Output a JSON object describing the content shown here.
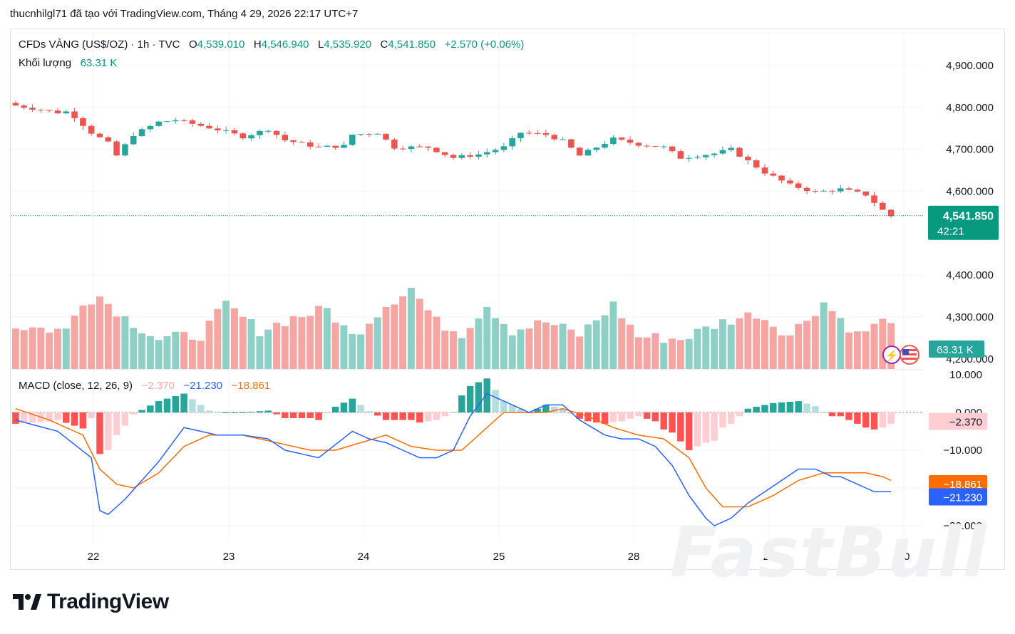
{
  "header": {
    "title": "thucnhilgl71 đã tạo với TradingView.com, Tháng 4 29, 2026 22:17 UTC+7"
  },
  "legend": {
    "symbol": "CFDs VÀNG (US$/OZ) · 1h · TVC",
    "open_label": "O",
    "open": "4,539.010",
    "high_label": "H",
    "high": "4,546.940",
    "low_label": "L",
    "low": "4,535.920",
    "close_label": "C",
    "close": "4,541.850",
    "change": "+2.570 (+0.06%)",
    "volume_label": "Khối lượng",
    "volume": "63.31 K"
  },
  "macd": {
    "label": "MACD (close, 12, 26, 9)",
    "hist": "−2.370",
    "macd": "−21.230",
    "signal": "−18.861"
  },
  "colors": {
    "up": "#26a69a",
    "down": "#ef5350",
    "vol_up": "#8ed0c5",
    "vol_down": "#f5a6a3",
    "macd_line": "#2962ff",
    "signal_line": "#ff6d00",
    "price_tag": "#089981"
  },
  "price_axis": {
    "ticks": [
      "4,900.000",
      "4,800.000",
      "4,700.000",
      "4,600.000",
      "4,400.000",
      "4,300.000",
      "4,200.000"
    ],
    "last_price": "4,541.850",
    "countdown": "42:21",
    "volume_tag": "63.31 K"
  },
  "macd_axis": {
    "ticks": [
      "10.000",
      "0.000",
      "−10.000",
      "−30.000"
    ],
    "hist_tag": "−2.370",
    "signal_tag": "−18.861",
    "macd_tag": "−21.230"
  },
  "time_axis": {
    "ticks": [
      "22",
      "23",
      "24",
      "25",
      "28",
      "29",
      "30"
    ]
  },
  "brand": {
    "name": "TradingView",
    "watermark": "FastBull"
  },
  "chart_data": {
    "type": "candlestick",
    "series_count": 105,
    "price_range": [
      4150,
      4930
    ],
    "macd_range": [
      -33,
      11
    ],
    "close_anchors": [
      [
        0,
        4808
      ],
      [
        6,
        4788
      ],
      [
        7,
        4790
      ],
      [
        8,
        4778
      ],
      [
        10,
        4740
      ],
      [
        12,
        4715
      ],
      [
        13,
        4685
      ],
      [
        15,
        4735
      ],
      [
        18,
        4765
      ],
      [
        20,
        4770
      ],
      [
        24,
        4752
      ],
      [
        26,
        4742
      ],
      [
        28,
        4730
      ],
      [
        31,
        4748
      ],
      [
        33,
        4722
      ],
      [
        37,
        4705
      ],
      [
        40,
        4708
      ],
      [
        41,
        4735
      ],
      [
        44,
        4740
      ],
      [
        46,
        4705
      ],
      [
        50,
        4705
      ],
      [
        53,
        4680
      ],
      [
        56,
        4688
      ],
      [
        59,
        4705
      ],
      [
        61,
        4740
      ],
      [
        64,
        4735
      ],
      [
        66,
        4720
      ],
      [
        68,
        4685
      ],
      [
        70,
        4705
      ],
      [
        72,
        4725
      ],
      [
        75,
        4712
      ],
      [
        78,
        4705
      ],
      [
        80,
        4680
      ],
      [
        84,
        4690
      ],
      [
        86,
        4700
      ],
      [
        88,
        4672
      ],
      [
        90,
        4645
      ],
      [
        93,
        4615
      ],
      [
        96,
        4598
      ],
      [
        99,
        4605
      ],
      [
        102,
        4592
      ],
      [
        104,
        4555
      ],
      [
        105,
        4541
      ]
    ],
    "volume_anchors": [
      [
        0,
        50
      ],
      [
        6,
        45
      ],
      [
        8,
        80
      ],
      [
        10,
        85
      ],
      [
        13,
        60
      ],
      [
        17,
        35
      ],
      [
        22,
        40
      ],
      [
        25,
        75
      ],
      [
        29,
        45
      ],
      [
        33,
        60
      ],
      [
        37,
        70
      ],
      [
        40,
        38
      ],
      [
        44,
        75
      ],
      [
        47,
        95
      ],
      [
        50,
        55
      ],
      [
        53,
        42
      ],
      [
        56,
        75
      ],
      [
        59,
        45
      ],
      [
        63,
        55
      ],
      [
        67,
        40
      ],
      [
        71,
        75
      ],
      [
        74,
        38
      ],
      [
        79,
        35
      ],
      [
        84,
        55
      ],
      [
        88,
        65
      ],
      [
        92,
        40
      ],
      [
        96,
        78
      ],
      [
        100,
        40
      ],
      [
        103,
        55
      ],
      [
        105,
        64
      ]
    ],
    "macd_anchors": [
      [
        0,
        -2
      ],
      [
        5,
        -5
      ],
      [
        9,
        -12
      ],
      [
        10,
        -26
      ],
      [
        11,
        -27
      ],
      [
        13,
        -23
      ],
      [
        17,
        -13
      ],
      [
        20,
        -4
      ],
      [
        22,
        -5
      ],
      [
        24,
        -6
      ],
      [
        27,
        -6
      ],
      [
        30,
        -7
      ],
      [
        32,
        -10
      ],
      [
        34,
        -11
      ],
      [
        36,
        -12
      ],
      [
        40,
        -5
      ],
      [
        42,
        -7
      ],
      [
        44,
        -8
      ],
      [
        46,
        -10
      ],
      [
        48,
        -12
      ],
      [
        50,
        -12
      ],
      [
        52,
        -10
      ],
      [
        54,
        -1
      ],
      [
        56,
        5
      ],
      [
        58,
        3
      ],
      [
        61,
        0
      ],
      [
        63,
        2
      ],
      [
        65,
        2
      ],
      [
        67,
        -2
      ],
      [
        70,
        -6
      ],
      [
        72,
        -7
      ],
      [
        74,
        -7
      ],
      [
        76,
        -9
      ],
      [
        78,
        -14
      ],
      [
        80,
        -22
      ],
      [
        82,
        -28
      ],
      [
        83,
        -30
      ],
      [
        85,
        -28
      ],
      [
        87,
        -24
      ],
      [
        89,
        -21
      ],
      [
        91,
        -18
      ],
      [
        93,
        -15
      ],
      [
        95,
        -15
      ],
      [
        97,
        -17
      ],
      [
        98,
        -17
      ],
      [
        100,
        -19
      ],
      [
        102,
        -21
      ],
      [
        104,
        -21
      ]
    ],
    "signal_anchors": [
      [
        0,
        1
      ],
      [
        4,
        -2
      ],
      [
        8,
        -6
      ],
      [
        10,
        -15
      ],
      [
        12,
        -19
      ],
      [
        14,
        -20
      ],
      [
        17,
        -16
      ],
      [
        20,
        -9
      ],
      [
        23,
        -6
      ],
      [
        27,
        -6
      ],
      [
        31,
        -8
      ],
      [
        35,
        -10
      ],
      [
        38,
        -10
      ],
      [
        41,
        -8
      ],
      [
        44,
        -6
      ],
      [
        47,
        -9
      ],
      [
        50,
        -10
      ],
      [
        53,
        -10
      ],
      [
        56,
        -4
      ],
      [
        58,
        0
      ],
      [
        61,
        0
      ],
      [
        63,
        0
      ],
      [
        65,
        1
      ],
      [
        68,
        -1
      ],
      [
        71,
        -4
      ],
      [
        74,
        -6
      ],
      [
        77,
        -7
      ],
      [
        80,
        -12
      ],
      [
        82,
        -20
      ],
      [
        84,
        -25
      ],
      [
        87,
        -25
      ],
      [
        90,
        -22
      ],
      [
        93,
        -18
      ],
      [
        96,
        -16
      ],
      [
        99,
        -16
      ],
      [
        101,
        -16
      ],
      [
        103,
        -17
      ],
      [
        105,
        -19
      ]
    ]
  }
}
